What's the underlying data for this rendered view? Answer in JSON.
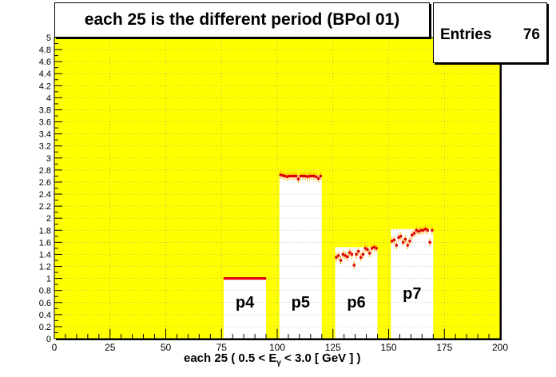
{
  "title": "each 25 is the different period (BPol 01)",
  "stats": {
    "label": "Entries",
    "value": "76"
  },
  "x_title": {
    "before": "each 25 ( 0.5 < E",
    "sub": "γ",
    "after": " < 3.0 [ GeV ] )"
  },
  "colors": {
    "plot_bg": "#ffff00",
    "gap_fill": "#ffffff",
    "marker": "#dd0000",
    "error_bar": "#ffaa00",
    "grid": "#999999"
  },
  "chart_data": {
    "type": "scatter",
    "xlim": [
      0,
      200
    ],
    "ylim": [
      0,
      5
    ],
    "x_ticks": [
      "0",
      "25",
      "50",
      "75",
      "100",
      "125",
      "150",
      "175",
      "200"
    ],
    "y_ticks": [
      "0",
      "0.2",
      "0.4",
      "0.6",
      "0.8",
      "1",
      "1.2",
      "1.4",
      "1.6",
      "1.8",
      "2",
      "2.2",
      "2.4",
      "2.6",
      "2.8",
      "3",
      "3.2",
      "3.4",
      "3.6",
      "3.8",
      "4",
      "4.2",
      "4.4",
      "4.6",
      "4.8",
      "5"
    ],
    "grid": true,
    "periods": [
      {
        "label": "p4",
        "x_start": 76,
        "x_end": 94,
        "y": [
          1.0,
          1.0,
          1.0,
          1.0,
          1.0,
          1.0,
          1.0,
          1.0,
          1.0,
          1.0,
          1.0,
          1.0,
          1.0,
          1.0,
          1.0,
          1.0,
          1.0,
          1.0,
          1.0
        ]
      },
      {
        "label": "p5",
        "x_start": 101,
        "x_end": 119,
        "y": [
          2.72,
          2.71,
          2.7,
          2.69,
          2.7,
          2.7,
          2.7,
          2.7,
          2.65,
          2.7,
          2.7,
          2.7,
          2.69,
          2.7,
          2.7,
          2.7,
          2.69,
          2.66,
          2.7
        ]
      },
      {
        "label": "p6",
        "x_start": 126,
        "x_end": 144,
        "y": [
          1.35,
          1.38,
          1.3,
          1.4,
          1.38,
          1.36,
          1.43,
          1.4,
          1.22,
          1.4,
          1.45,
          1.35,
          1.4,
          1.5,
          1.48,
          1.42,
          1.5,
          1.52,
          1.5
        ]
      },
      {
        "label": "p7",
        "x_start": 151,
        "x_end": 169,
        "y": [
          1.62,
          1.64,
          1.55,
          1.68,
          1.7,
          1.6,
          1.65,
          1.55,
          1.62,
          1.72,
          1.75,
          1.8,
          1.78,
          1.8,
          1.8,
          1.82,
          1.8,
          1.6,
          1.8
        ]
      }
    ]
  }
}
